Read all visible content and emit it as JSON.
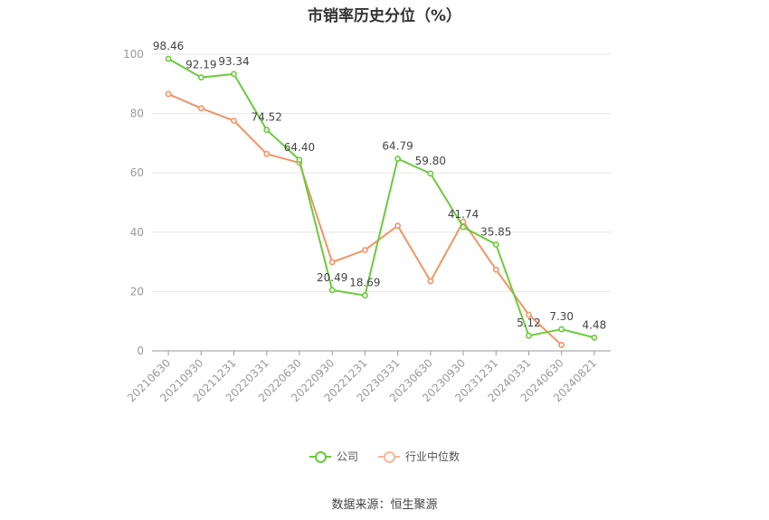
{
  "chart_data": {
    "type": "line",
    "title": "市销率历史分位（%）",
    "categories": [
      "20210630",
      "20210930",
      "20211231",
      "20220331",
      "20220630",
      "20220930",
      "20221231",
      "20230331",
      "20230630",
      "20230930",
      "20231231",
      "20240331",
      "20240630",
      "20240821"
    ],
    "series": [
      {
        "name": "公司",
        "color": "#6acb3a",
        "values": [
          98.46,
          92.19,
          93.34,
          74.52,
          64.4,
          20.49,
          18.69,
          64.79,
          59.8,
          41.74,
          35.85,
          5.12,
          7.3,
          4.48
        ],
        "labels": [
          "98.46",
          "92.19",
          "93.34",
          "74.52",
          "64.40",
          "20.49",
          "18.69",
          "64.79",
          "59.80",
          "41.74",
          "35.85",
          "5.12",
          "7.30",
          "4.48"
        ]
      },
      {
        "name": "行业中位数",
        "color": "#f39465",
        "values": [
          86.6,
          81.8,
          77.6,
          66.4,
          63.4,
          29.9,
          34.0,
          42.2,
          23.5,
          43.6,
          27.4,
          12.2,
          2.0,
          null
        ]
      }
    ],
    "ylim": [
      0,
      100
    ],
    "yticks": [
      "0",
      "20",
      "40",
      "60",
      "80",
      "100"
    ],
    "grid": true,
    "legend_position": "bottom"
  },
  "source": "数据来源：恒生聚源"
}
